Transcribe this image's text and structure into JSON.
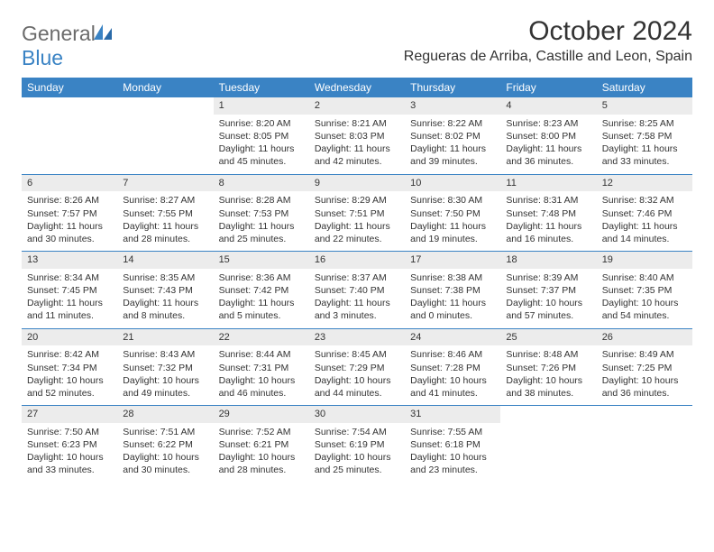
{
  "logo": {
    "word1": "General",
    "word2": "Blue"
  },
  "title": "October 2024",
  "location": "Regueras de Arriba, Castille and Leon, Spain",
  "colors": {
    "header_bg": "#3a83c4",
    "header_fg": "#ffffff",
    "daynum_bg": "#ececec",
    "text": "#333333",
    "logo_gray": "#6b6b6b",
    "logo_blue": "#3a83c4",
    "rule": "#3a83c4"
  },
  "dayNames": [
    "Sunday",
    "Monday",
    "Tuesday",
    "Wednesday",
    "Thursday",
    "Friday",
    "Saturday"
  ],
  "weeks": [
    [
      null,
      null,
      {
        "n": "1",
        "sr": "Sunrise: 8:20 AM",
        "ss": "Sunset: 8:05 PM",
        "dl": "Daylight: 11 hours and 45 minutes."
      },
      {
        "n": "2",
        "sr": "Sunrise: 8:21 AM",
        "ss": "Sunset: 8:03 PM",
        "dl": "Daylight: 11 hours and 42 minutes."
      },
      {
        "n": "3",
        "sr": "Sunrise: 8:22 AM",
        "ss": "Sunset: 8:02 PM",
        "dl": "Daylight: 11 hours and 39 minutes."
      },
      {
        "n": "4",
        "sr": "Sunrise: 8:23 AM",
        "ss": "Sunset: 8:00 PM",
        "dl": "Daylight: 11 hours and 36 minutes."
      },
      {
        "n": "5",
        "sr": "Sunrise: 8:25 AM",
        "ss": "Sunset: 7:58 PM",
        "dl": "Daylight: 11 hours and 33 minutes."
      }
    ],
    [
      {
        "n": "6",
        "sr": "Sunrise: 8:26 AM",
        "ss": "Sunset: 7:57 PM",
        "dl": "Daylight: 11 hours and 30 minutes."
      },
      {
        "n": "7",
        "sr": "Sunrise: 8:27 AM",
        "ss": "Sunset: 7:55 PM",
        "dl": "Daylight: 11 hours and 28 minutes."
      },
      {
        "n": "8",
        "sr": "Sunrise: 8:28 AM",
        "ss": "Sunset: 7:53 PM",
        "dl": "Daylight: 11 hours and 25 minutes."
      },
      {
        "n": "9",
        "sr": "Sunrise: 8:29 AM",
        "ss": "Sunset: 7:51 PM",
        "dl": "Daylight: 11 hours and 22 minutes."
      },
      {
        "n": "10",
        "sr": "Sunrise: 8:30 AM",
        "ss": "Sunset: 7:50 PM",
        "dl": "Daylight: 11 hours and 19 minutes."
      },
      {
        "n": "11",
        "sr": "Sunrise: 8:31 AM",
        "ss": "Sunset: 7:48 PM",
        "dl": "Daylight: 11 hours and 16 minutes."
      },
      {
        "n": "12",
        "sr": "Sunrise: 8:32 AM",
        "ss": "Sunset: 7:46 PM",
        "dl": "Daylight: 11 hours and 14 minutes."
      }
    ],
    [
      {
        "n": "13",
        "sr": "Sunrise: 8:34 AM",
        "ss": "Sunset: 7:45 PM",
        "dl": "Daylight: 11 hours and 11 minutes."
      },
      {
        "n": "14",
        "sr": "Sunrise: 8:35 AM",
        "ss": "Sunset: 7:43 PM",
        "dl": "Daylight: 11 hours and 8 minutes."
      },
      {
        "n": "15",
        "sr": "Sunrise: 8:36 AM",
        "ss": "Sunset: 7:42 PM",
        "dl": "Daylight: 11 hours and 5 minutes."
      },
      {
        "n": "16",
        "sr": "Sunrise: 8:37 AM",
        "ss": "Sunset: 7:40 PM",
        "dl": "Daylight: 11 hours and 3 minutes."
      },
      {
        "n": "17",
        "sr": "Sunrise: 8:38 AM",
        "ss": "Sunset: 7:38 PM",
        "dl": "Daylight: 11 hours and 0 minutes."
      },
      {
        "n": "18",
        "sr": "Sunrise: 8:39 AM",
        "ss": "Sunset: 7:37 PM",
        "dl": "Daylight: 10 hours and 57 minutes."
      },
      {
        "n": "19",
        "sr": "Sunrise: 8:40 AM",
        "ss": "Sunset: 7:35 PM",
        "dl": "Daylight: 10 hours and 54 minutes."
      }
    ],
    [
      {
        "n": "20",
        "sr": "Sunrise: 8:42 AM",
        "ss": "Sunset: 7:34 PM",
        "dl": "Daylight: 10 hours and 52 minutes."
      },
      {
        "n": "21",
        "sr": "Sunrise: 8:43 AM",
        "ss": "Sunset: 7:32 PM",
        "dl": "Daylight: 10 hours and 49 minutes."
      },
      {
        "n": "22",
        "sr": "Sunrise: 8:44 AM",
        "ss": "Sunset: 7:31 PM",
        "dl": "Daylight: 10 hours and 46 minutes."
      },
      {
        "n": "23",
        "sr": "Sunrise: 8:45 AM",
        "ss": "Sunset: 7:29 PM",
        "dl": "Daylight: 10 hours and 44 minutes."
      },
      {
        "n": "24",
        "sr": "Sunrise: 8:46 AM",
        "ss": "Sunset: 7:28 PM",
        "dl": "Daylight: 10 hours and 41 minutes."
      },
      {
        "n": "25",
        "sr": "Sunrise: 8:48 AM",
        "ss": "Sunset: 7:26 PM",
        "dl": "Daylight: 10 hours and 38 minutes."
      },
      {
        "n": "26",
        "sr": "Sunrise: 8:49 AM",
        "ss": "Sunset: 7:25 PM",
        "dl": "Daylight: 10 hours and 36 minutes."
      }
    ],
    [
      {
        "n": "27",
        "sr": "Sunrise: 7:50 AM",
        "ss": "Sunset: 6:23 PM",
        "dl": "Daylight: 10 hours and 33 minutes."
      },
      {
        "n": "28",
        "sr": "Sunrise: 7:51 AM",
        "ss": "Sunset: 6:22 PM",
        "dl": "Daylight: 10 hours and 30 minutes."
      },
      {
        "n": "29",
        "sr": "Sunrise: 7:52 AM",
        "ss": "Sunset: 6:21 PM",
        "dl": "Daylight: 10 hours and 28 minutes."
      },
      {
        "n": "30",
        "sr": "Sunrise: 7:54 AM",
        "ss": "Sunset: 6:19 PM",
        "dl": "Daylight: 10 hours and 25 minutes."
      },
      {
        "n": "31",
        "sr": "Sunrise: 7:55 AM",
        "ss": "Sunset: 6:18 PM",
        "dl": "Daylight: 10 hours and 23 minutes."
      },
      null,
      null
    ]
  ]
}
